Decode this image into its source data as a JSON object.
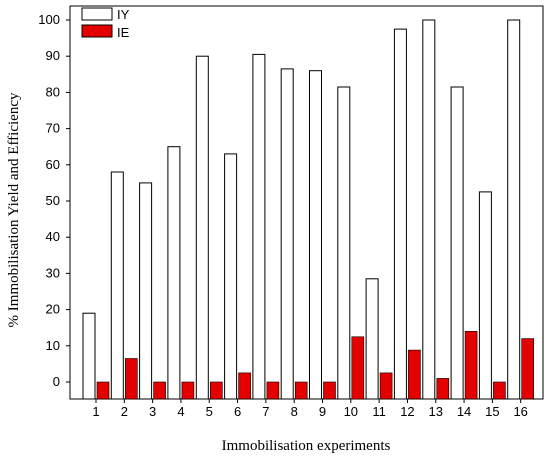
{
  "chart_data": {
    "type": "bar",
    "xlabel": "Immobilisation experiments",
    "ylabel": "% Immobilisation Yield and Efficiency",
    "ylim": [
      -5,
      105
    ],
    "yticks": [
      0,
      10,
      20,
      30,
      40,
      50,
      60,
      70,
      80,
      90,
      100
    ],
    "categories": [
      "1",
      "2",
      "3",
      "4",
      "5",
      "6",
      "7",
      "8",
      "9",
      "10",
      "11",
      "12",
      "13",
      "14",
      "15",
      "16"
    ],
    "legend_position": "top-left",
    "grid": false,
    "series": [
      {
        "name": "IY",
        "color": "#ffffff",
        "edge_color": "#000000",
        "values": [
          19,
          58,
          55,
          65,
          90,
          63,
          90.5,
          86.5,
          86,
          81.5,
          28.5,
          97.5,
          100,
          81.5,
          52.5,
          100
        ]
      },
      {
        "name": "IE",
        "color": "#e50000",
        "edge_color": "#000000",
        "values": [
          0,
          6.5,
          0,
          0,
          0,
          2.5,
          0,
          0,
          0,
          12.5,
          2.5,
          8.8,
          1,
          14,
          0,
          12
        ]
      }
    ]
  }
}
